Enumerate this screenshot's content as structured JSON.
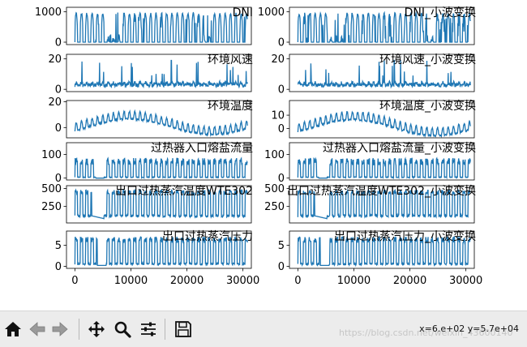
{
  "colors": {
    "line": "#1f77b4",
    "toolbar_bg": "#ececec"
  },
  "chart_data": [
    {
      "type": "line",
      "title": "DNI",
      "yticks": [
        "0",
        "1000"
      ],
      "ylim": [
        -80,
        1150
      ],
      "xlim": [
        -1500,
        31500
      ],
      "xticks": [],
      "pattern": "dni"
    },
    {
      "type": "line",
      "title": "DNI_小波变换",
      "yticks": [
        "0",
        "1000"
      ],
      "ylim": [
        -80,
        1150
      ],
      "xlim": [
        -1500,
        31500
      ],
      "xticks": [],
      "pattern": "dni"
    },
    {
      "type": "line",
      "title": "环境风速",
      "yticks": [
        "0",
        "20"
      ],
      "ylim": [
        -1.5,
        23
      ],
      "xlim": [
        -1500,
        31500
      ],
      "xticks": [],
      "pattern": "wind"
    },
    {
      "type": "line",
      "title": "环境风速_小波变换",
      "yticks": [
        "0",
        "20"
      ],
      "ylim": [
        -1.5,
        23
      ],
      "xlim": [
        -1500,
        31500
      ],
      "xticks": [],
      "pattern": "wind"
    },
    {
      "type": "line",
      "title": "环境温度",
      "yticks": [
        "0",
        "20"
      ],
      "ylim": [
        -8,
        21
      ],
      "xlim": [
        -1500,
        31500
      ],
      "xticks": [],
      "pattern": "temp"
    },
    {
      "type": "line",
      "title": "环境温度_小波变换",
      "yticks": [
        "0",
        "10"
      ],
      "ylim": [
        -7,
        21
      ],
      "xlim": [
        -1500,
        31500
      ],
      "xticks": [],
      "pattern": "temp"
    },
    {
      "type": "line",
      "title": "过热器入口熔盐流量",
      "yticks": [
        "0",
        "100"
      ],
      "ylim": [
        -8,
        150
      ],
      "xlim": [
        -1500,
        31500
      ],
      "xticks": [],
      "pattern": "flow"
    },
    {
      "type": "line",
      "title": "过热器入口熔盐流量_小波变换",
      "yticks": [
        "0",
        "100"
      ],
      "ylim": [
        -8,
        150
      ],
      "xlim": [
        -1500,
        31500
      ],
      "xticks": [],
      "pattern": "flow"
    },
    {
      "type": "line",
      "title": "出口过热蒸汽温度WTE302",
      "yticks": [
        "250",
        "500"
      ],
      "ylim": [
        20,
        540
      ],
      "xlim": [
        -1500,
        31500
      ],
      "xticks": [],
      "pattern": "steamtemp"
    },
    {
      "type": "line",
      "title": "出口过热蒸汽温度WTE302_小波变换",
      "yticks": [
        "250",
        "500"
      ],
      "ylim": [
        20,
        540
      ],
      "xlim": [
        -1500,
        31500
      ],
      "xticks": [],
      "pattern": "steamtemp"
    },
    {
      "type": "line",
      "title": "出口过热蒸汽压力",
      "yticks": [
        "0",
        "5"
      ],
      "ylim": [
        -0.5,
        8.4
      ],
      "xlim": [
        -1500,
        31500
      ],
      "xticks": [
        "0",
        "10000",
        "20000",
        "30000"
      ],
      "pattern": "pressure"
    },
    {
      "type": "line",
      "title": "出口过热蒸汽压力_小波变换",
      "yticks": [
        "0",
        "5"
      ],
      "ylim": [
        -0.5,
        8.4
      ],
      "xlim": [
        -1500,
        31500
      ],
      "xticks": [
        "0",
        "10000",
        "20000",
        "30000"
      ],
      "pattern": "pressure"
    }
  ],
  "toolbar": {
    "buttons": [
      {
        "name": "home-button",
        "icon": "home-icon"
      },
      {
        "name": "back-button",
        "icon": "arrow-left-icon"
      },
      {
        "name": "forward-button",
        "icon": "arrow-right-icon"
      },
      {
        "name": "pan-button",
        "icon": "move-icon"
      },
      {
        "name": "zoom-button",
        "icon": "magnifier-icon"
      },
      {
        "name": "configure-subplots-button",
        "icon": "sliders-icon"
      },
      {
        "name": "save-button",
        "icon": "floppy-disk-icon"
      }
    ],
    "coords": "x=6.e+02 y=5.7e+04"
  },
  "watermark": "https://blog.csdn.net/weixin_43600140"
}
